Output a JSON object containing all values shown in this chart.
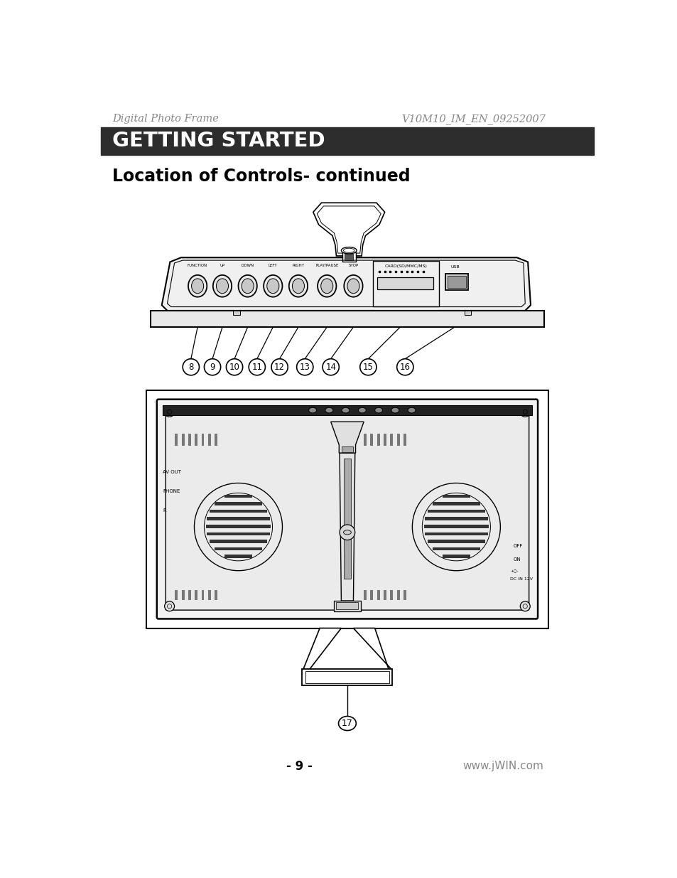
{
  "header_left": "Digital Photo Frame",
  "header_right": "V10M10_IM_EN_09252007",
  "header_bg": "#2d2d2d",
  "header_text": "GETTING STARTED",
  "header_text_color": "#ffffff",
  "section_title": "Location of Controls- continued",
  "footer_page": "- 9 -",
  "footer_url": "www.jWIN.com",
  "bg_color": "#ffffff",
  "text_color": "#000000",
  "gray_text": "#888888",
  "numbers_top": [
    "8",
    "9",
    "10",
    "11",
    "12",
    "13",
    "14",
    "15",
    "16"
  ],
  "number_bottom": "17"
}
